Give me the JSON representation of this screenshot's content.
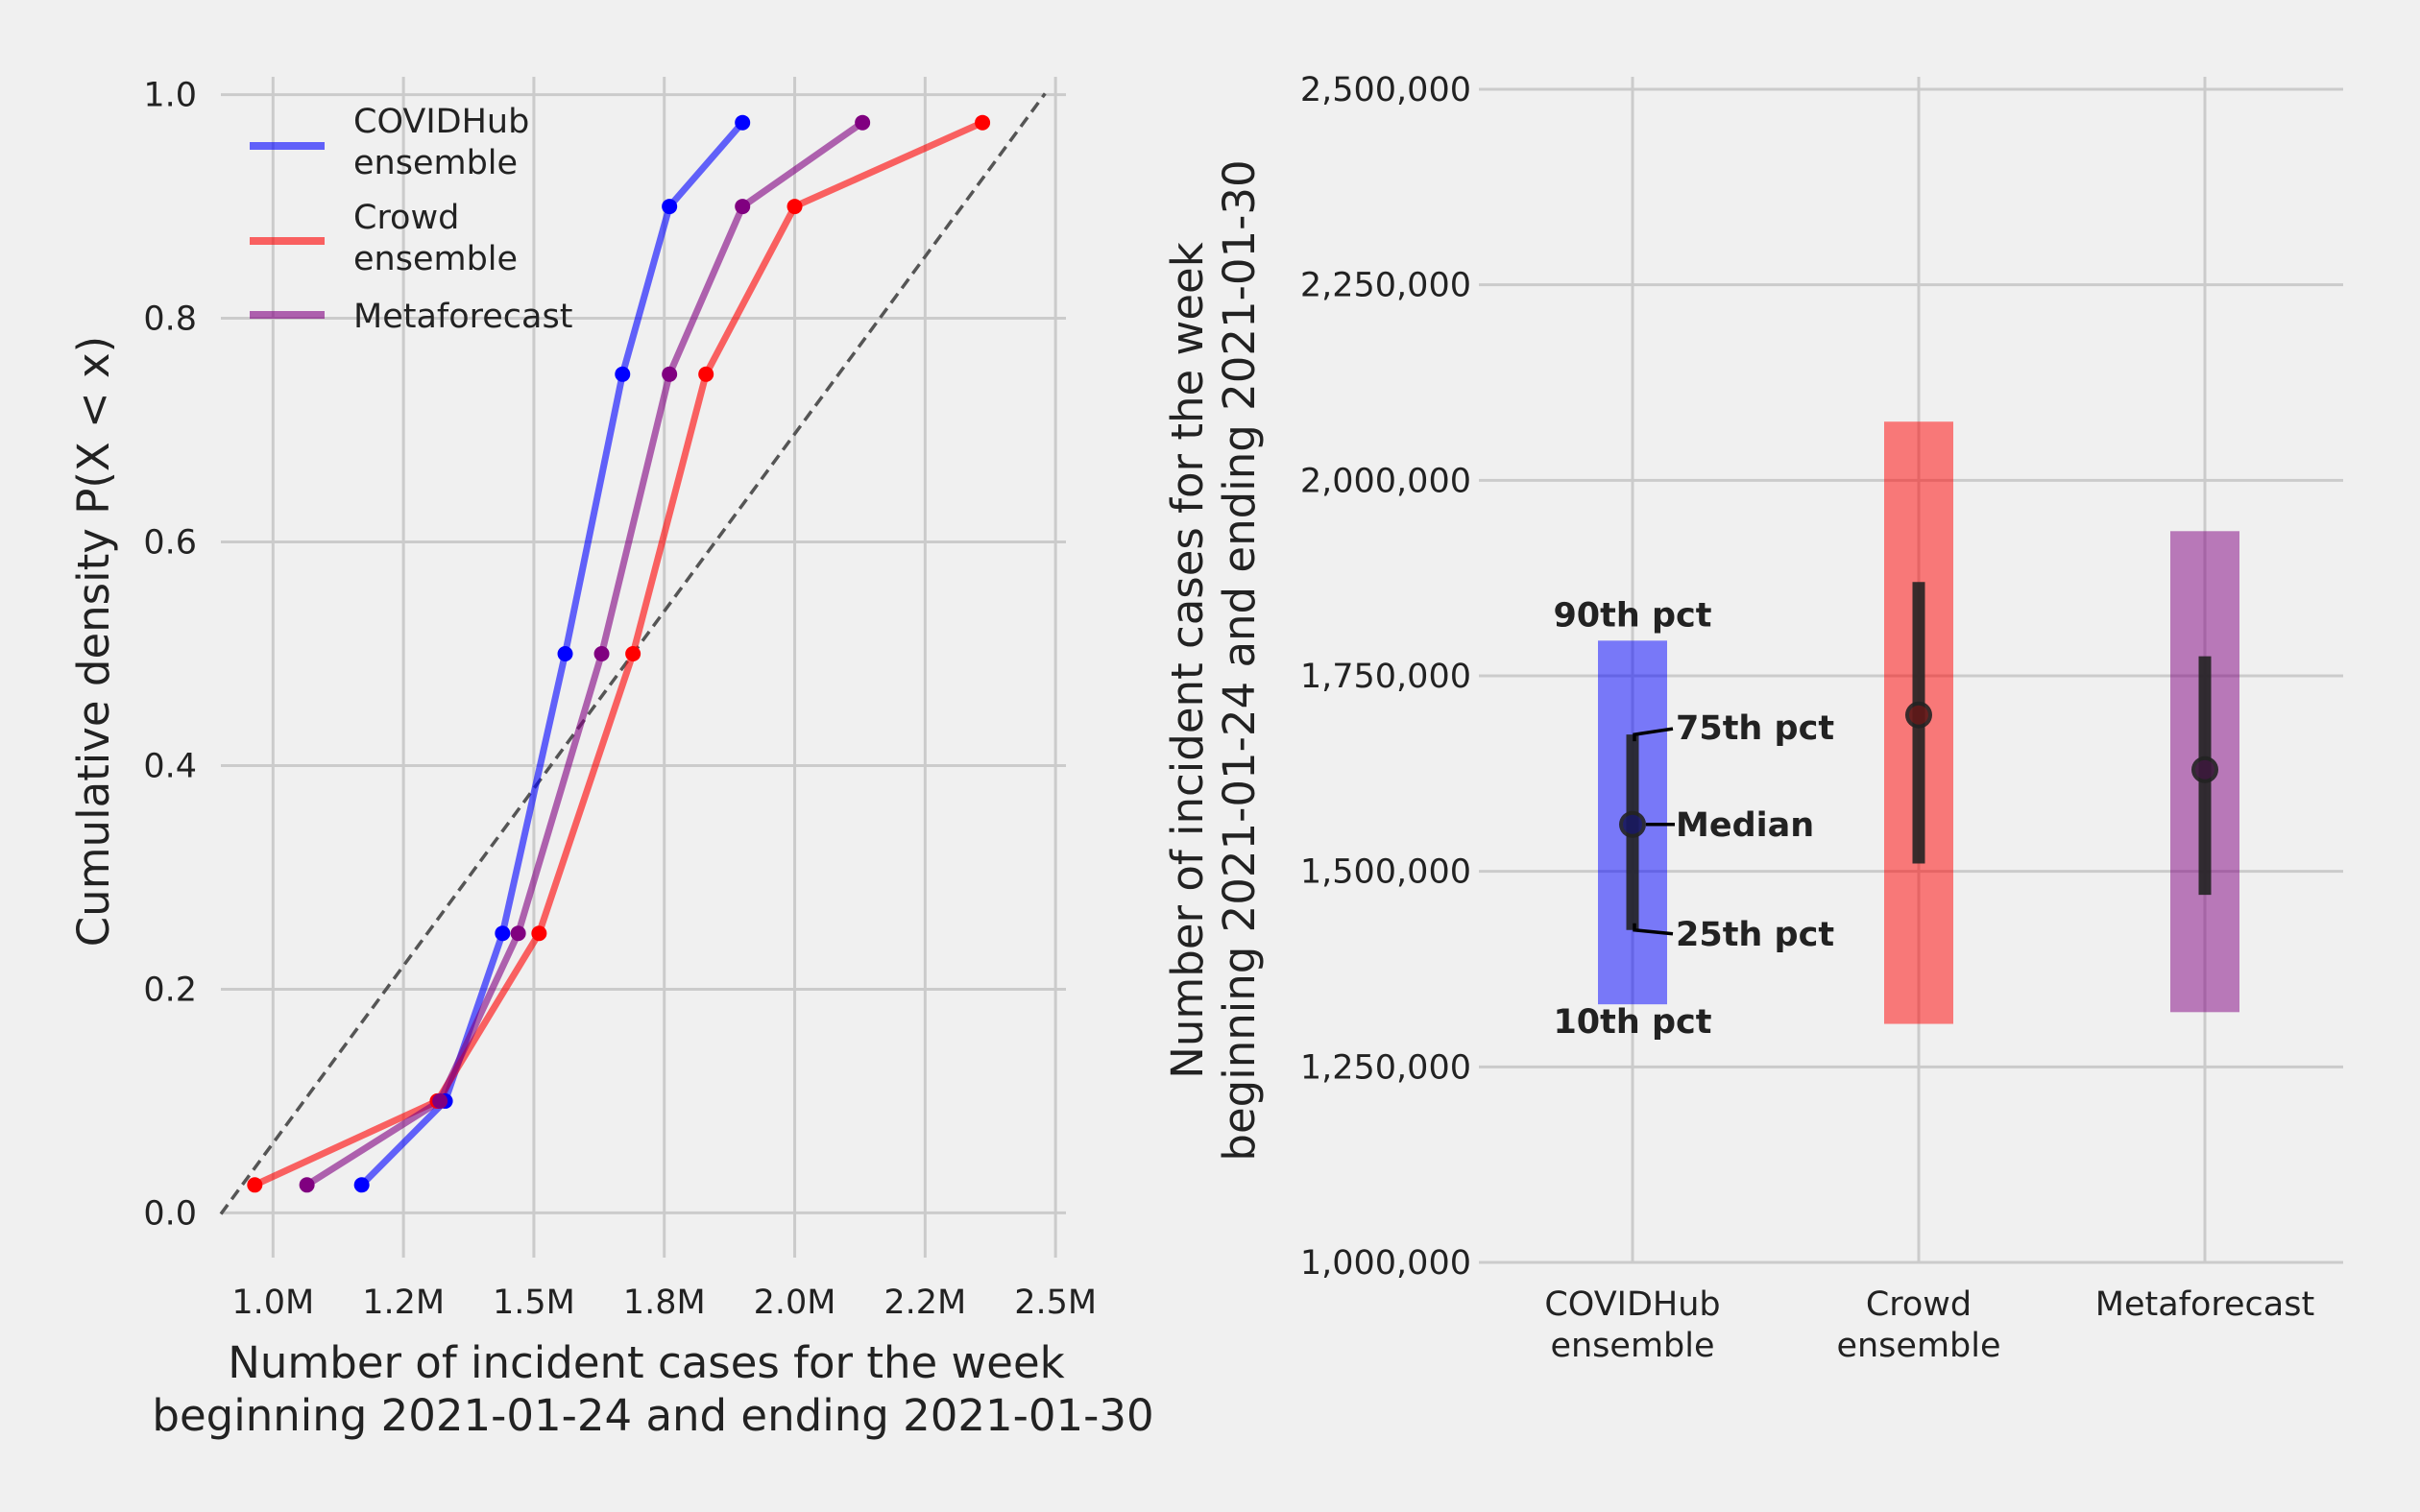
{
  "colors": {
    "background": "#f0f0f0",
    "grid": "#cbcbcb",
    "covidhub": "#0000ff",
    "crowd": "#ff0000",
    "metaforecast": "#800080",
    "interval_bar": "#222222",
    "diagonal": "#555555"
  },
  "chart_data": [
    {
      "type": "line",
      "ylabel": "Cumulative density P(X < x)",
      "xlabel_line1": "Number of incident cases for the week",
      "xlabel_line2": "beginning 2021-01-24 and ending 2021-01-30",
      "xlim": [
        900000,
        2520000
      ],
      "ylim": [
        -0.04,
        1.04
      ],
      "grid": true,
      "legend_position": "upper-left",
      "xticks": [
        1000000,
        1250000,
        1500000,
        1750000,
        2000000,
        2250000,
        2500000
      ],
      "xtick_labels": [
        "1.0M",
        "1.2M",
        "1.5M",
        "1.8M",
        "2.0M",
        "2.2M",
        "2.5M"
      ],
      "yticks": [
        0,
        0.2,
        0.4,
        0.6,
        0.8,
        1.0
      ],
      "ytick_labels": [
        "0.0",
        "0.2",
        "0.4",
        "0.6",
        "0.8",
        "1.0"
      ],
      "diagonal_reference": {
        "x": [
          900000,
          2480000
        ],
        "y": [
          -0.001,
          1.001
        ]
      },
      "series": [
        {
          "name": "COVIDHub ensemble",
          "name_line1": "COVIDHub",
          "name_line2": "ensemble",
          "color": "#0000ff",
          "x": [
            1170000,
            1330000,
            1440000,
            1560000,
            1670000,
            1760000,
            1900000
          ],
          "y": [
            0.025,
            0.1,
            0.25,
            0.5,
            0.75,
            0.9,
            0.975
          ]
        },
        {
          "name": "Crowd ensemble",
          "name_line1": "Crowd",
          "name_line2": "ensemble",
          "color": "#ff0000",
          "x": [
            965000,
            1315000,
            1510000,
            1690000,
            1830000,
            2000000,
            2360000
          ],
          "y": [
            0.025,
            0.1,
            0.25,
            0.5,
            0.75,
            0.9,
            0.975
          ]
        },
        {
          "name": "Metaforecast",
          "name_line1": "Metaforecast",
          "name_line2": "",
          "color": "#800080",
          "x": [
            1065000,
            1320000,
            1470000,
            1630000,
            1760000,
            1900000,
            2130000
          ],
          "y": [
            0.025,
            0.1,
            0.25,
            0.5,
            0.75,
            0.9,
            0.975
          ]
        }
      ]
    },
    {
      "type": "bar",
      "ylabel_line1": "Number of incident cases for the week",
      "ylabel_line2": "beginning 2021-01-24 and ending 2021-01-30",
      "ylim": [
        1000000,
        2500000
      ],
      "grid": true,
      "yticks": [
        1000000,
        1250000,
        1500000,
        1750000,
        2000000,
        2250000,
        2500000
      ],
      "ytick_labels": [
        "1,000,000",
        "1,250,000",
        "1,500,000",
        "1,750,000",
        "2,000,000",
        "2,250,000",
        "2,500,000"
      ],
      "categories": [
        {
          "line1": "COVIDHub",
          "line2": "ensemble"
        },
        {
          "line1": "Crowd",
          "line2": "ensemble"
        },
        {
          "line1": "Metaforecast",
          "line2": ""
        }
      ],
      "series": [
        {
          "name": "COVIDHub ensemble",
          "color": "#0000ff",
          "p10": 1330000,
          "p25": 1425000,
          "median": 1560000,
          "p75": 1675000,
          "p90": 1795000
        },
        {
          "name": "Crowd ensemble",
          "color": "#ff0000",
          "p10": 1305000,
          "p25": 1510000,
          "median": 1700000,
          "p75": 1870000,
          "p90": 2075000
        },
        {
          "name": "Metaforecast",
          "color": "#800080",
          "p10": 1320000,
          "p25": 1470000,
          "median": 1630000,
          "p75": 1775000,
          "p90": 1935000
        }
      ],
      "annotations": {
        "p90": "90th pct",
        "p75": "75th pct",
        "median": "Median",
        "p25": "25th pct",
        "p10": "10th pct"
      }
    }
  ]
}
